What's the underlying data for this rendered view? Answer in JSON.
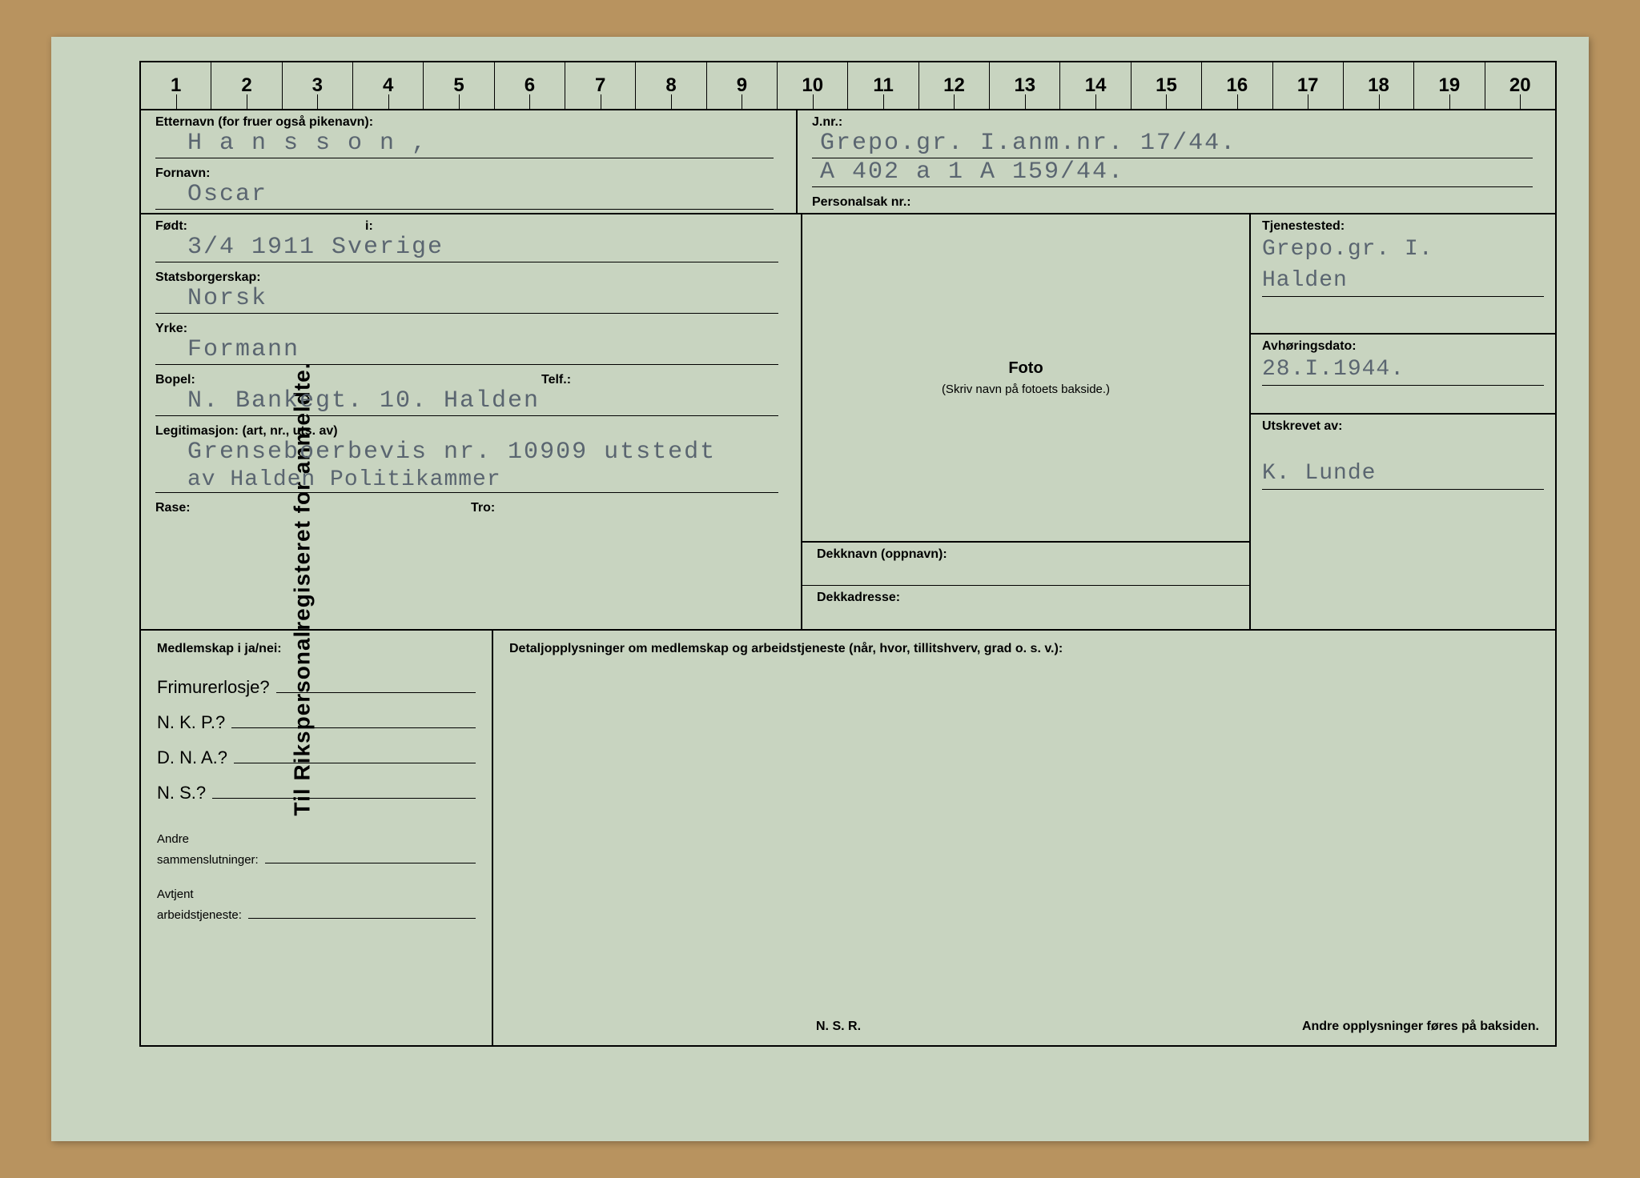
{
  "document": {
    "vertical_title": "Til Rikspersonalregisteret for anmeldte.",
    "ruler_count": 20
  },
  "fields": {
    "etternavn_label": "Etternavn (for fruer også pikenavn):",
    "etternavn_value": "H a n s s o n ,",
    "fornavn_label": "Fornavn:",
    "fornavn_value": "Oscar",
    "fodt_label": "Født:",
    "fodt_i_label": "i:",
    "fodt_value": "3/4  1911      Sverige",
    "statsborger_label": "Statsborgerskap:",
    "statsborger_value": "Norsk",
    "yrke_label": "Yrke:",
    "yrke_value": "Formann",
    "bopel_label": "Bopel:",
    "telf_label": "Telf.:",
    "bopel_value": "N. Bankegt. 10. Halden",
    "legit_label": "Legitimasjon: (art, nr., uts. av)",
    "legit_value1": "Grenseboerbevis nr. 10909 utstedt",
    "legit_value2": "av Halden Politikammer",
    "rase_label": "Rase:",
    "tro_label": "Tro:",
    "jnr_label": "J.nr.:",
    "jnr_value1": "Grepo.gr. I.anm.nr. 17/44.",
    "jnr_value2": "A 402  a  1 A 159/44.",
    "personalsak_label": "Personalsak nr.:",
    "foto_title": "Foto",
    "foto_sub": "(Skriv navn på fotoets bakside.)",
    "dekknavn_label": "Dekknavn (oppnavn):",
    "dekkadresse_label": "Dekkadresse:",
    "tjenestested_label": "Tjenestested:",
    "tjenestested_value1": "Grepo.gr. I.",
    "tjenestested_value2": "Halden",
    "avhoring_label": "Avhøringsdato:",
    "avhoring_value": "28.I.1944.",
    "utskrevet_label": "Utskrevet av:",
    "utskrevet_value": "K. Lunde"
  },
  "membership": {
    "header": "Medlemskap i ja/nei:",
    "frimurer": "Frimurerlosje?",
    "nkp": "N. K. P.?",
    "dna": "D. N. A.?",
    "ns": "N. S.?",
    "andre_samm_label1": "Andre",
    "andre_samm_label2": "sammenslutninger:",
    "avtjent_label1": "Avtjent",
    "avtjent_label2": "arbeidstjeneste:"
  },
  "detail": {
    "header": "Detaljopplysninger om medlemskap og arbeidstjeneste (når, hvor, tillitshverv, grad o. s. v.):",
    "nsr": "N. S. R.",
    "bakside": "Andre opplysninger føres på baksiden."
  },
  "colors": {
    "card_bg": "#c8d4c0",
    "page_bg": "#b8935f",
    "typed_text": "#5a6570",
    "line": "#000000"
  }
}
